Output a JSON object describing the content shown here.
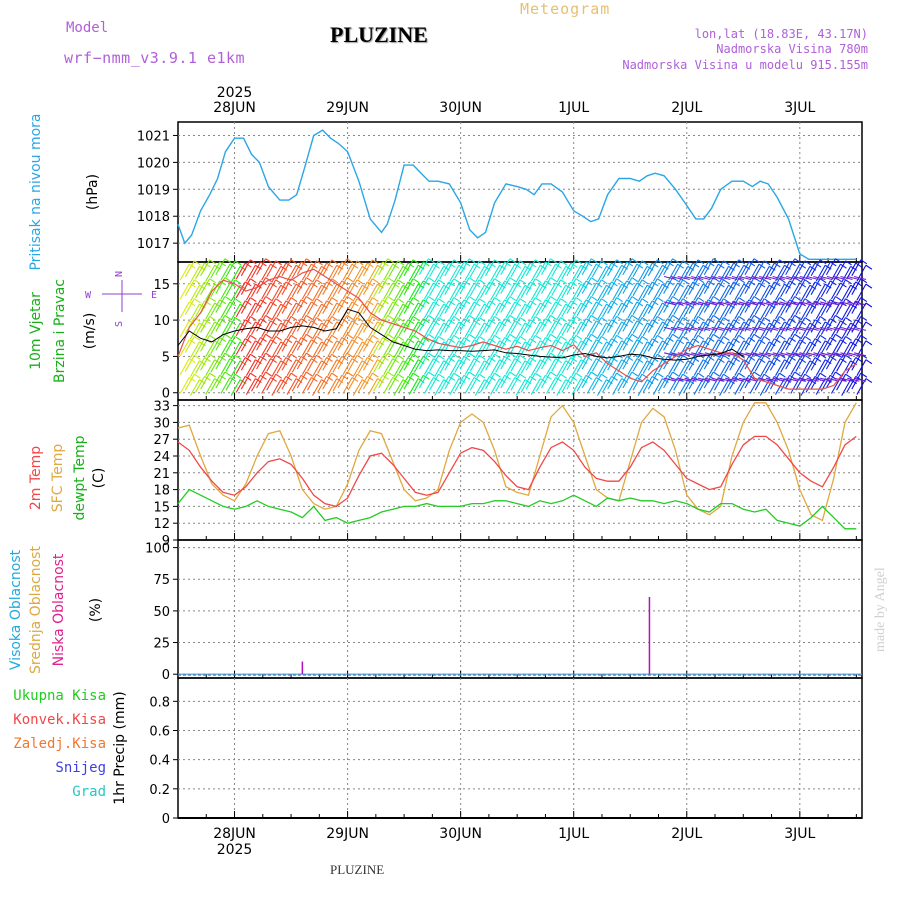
{
  "header": {
    "model_label": "Model",
    "model_name": "wrf−nmm_v3.9.1 e1km",
    "title": "PLUZINE",
    "meteogram_label": "Meteogram",
    "coords": "lon,lat (18.83E, 43.17N)",
    "elevation": "Nadmorska Visina 780m",
    "model_elevation": "Nadmorska Visina u modelu 915.155m"
  },
  "footer": {
    "station": "PLUZINE",
    "watermark": "made by Angel"
  },
  "colors": {
    "pressure": "#2aa6e6",
    "temp2m": "#f04848",
    "sfc": "#e0a840",
    "dewpt": "#22cc22",
    "high_cloud": "#22aadd",
    "mid_cloud": "#dca840",
    "low_cloud": "#e0208c",
    "total_rain": "#22cc22",
    "conv_rain": "#f04848",
    "frz_rain": "#f07830",
    "snow": "#4040e0",
    "hail": "#22c8c8",
    "grid": "#888888"
  },
  "chart_data": [
    {
      "type": "line",
      "panel": "pressure",
      "ylabel_lines": [
        "Pritisak na nivou mora",
        "(hPa)"
      ],
      "ylim": [
        1016.3,
        1021.5
      ],
      "yticks": [
        1017,
        1018,
        1019,
        1020,
        1021
      ],
      "x_date_labels": [
        "28JUN",
        "29JUN",
        "30JUN",
        "1JUL",
        "2JUL",
        "3JUL"
      ],
      "x_year": "2025",
      "x_day_offsets": [
        0.5,
        1.5,
        2.5,
        3.5,
        4.5,
        5.5,
        6.5
      ],
      "series": [
        {
          "name": "Pritisak na nivou mora",
          "x": [
            0.5,
            0.56,
            0.62,
            0.7,
            0.78,
            0.85,
            0.92,
            1.0,
            1.08,
            1.15,
            1.22,
            1.3,
            1.4,
            1.48,
            1.55,
            1.62,
            1.7,
            1.78,
            1.85,
            1.92,
            2.0,
            2.1,
            2.2,
            2.3,
            2.35,
            2.42,
            2.5,
            2.58,
            2.65,
            2.72,
            2.8,
            2.9,
            3.0,
            3.08,
            3.15,
            3.22,
            3.3,
            3.4,
            3.5,
            3.58,
            3.65,
            3.72,
            3.8,
            3.9,
            4.0,
            4.08,
            4.15,
            4.22,
            4.3,
            4.4,
            4.5,
            4.58,
            4.65,
            4.72,
            4.8,
            4.9,
            5.0,
            5.08,
            5.15,
            5.22,
            5.3,
            5.4,
            5.5,
            5.58,
            5.65,
            5.72,
            5.8,
            5.9,
            6.0,
            6.08,
            6.15,
            6.22,
            6.3,
            6.4,
            6.5
          ],
          "y": [
            1017.7,
            1017.0,
            1017.3,
            1018.2,
            1018.8,
            1019.4,
            1020.4,
            1020.9,
            1020.9,
            1020.3,
            1020.0,
            1019.1,
            1018.6,
            1018.6,
            1018.8,
            1019.8,
            1021.0,
            1021.2,
            1020.9,
            1020.7,
            1020.4,
            1019.3,
            1017.9,
            1017.4,
            1017.7,
            1018.6,
            1019.9,
            1019.9,
            1019.6,
            1019.3,
            1019.3,
            1019.2,
            1018.5,
            1017.5,
            1017.2,
            1017.4,
            1018.5,
            1019.2,
            1019.1,
            1019.0,
            1018.8,
            1019.2,
            1019.2,
            1018.9,
            1018.2,
            1018.0,
            1017.8,
            1017.9,
            1018.8,
            1019.4,
            1019.4,
            1019.3,
            1019.5,
            1019.6,
            1019.5,
            1019.0,
            1018.4,
            1017.9,
            1017.9,
            1018.3,
            1019.0,
            1019.3,
            1019.3,
            1019.1,
            1019.3,
            1019.2,
            1018.7,
            1017.9,
            1016.6,
            1016.4,
            1016.4,
            1016.4,
            1016.4,
            1016.4,
            1016.4
          ]
        }
      ]
    },
    {
      "type": "line",
      "panel": "wind",
      "ylabel_lines": [
        "10m Vjetar",
        "Brzina i Pravac",
        "(m/s)"
      ],
      "direction_key": [
        "N",
        "W",
        "E",
        "S"
      ],
      "ylim": [
        -1,
        18
      ],
      "yticks": [
        0,
        5,
        10,
        15
      ],
      "series": [
        {
          "name": "Brzina",
          "x": [
            0.5,
            0.6,
            0.7,
            0.8,
            0.9,
            1.0,
            1.1,
            1.2,
            1.3,
            1.4,
            1.5,
            1.6,
            1.7,
            1.8,
            1.9,
            2.0,
            2.1,
            2.2,
            2.3,
            2.4,
            2.5,
            2.6,
            2.7,
            2.8,
            2.9,
            3.0,
            3.1,
            3.2,
            3.3,
            3.4,
            3.5,
            3.6,
            3.7,
            3.8,
            3.9,
            4.0,
            4.1,
            4.2,
            4.3,
            4.4,
            4.5,
            4.6,
            4.7,
            4.8,
            4.9,
            5.0,
            5.1,
            5.2,
            5.3,
            5.4,
            5.5
          ],
          "y": [
            6.5,
            8.5,
            7.5,
            7.0,
            8.0,
            8.5,
            8.8,
            9.0,
            8.5,
            8.5,
            9.0,
            9.2,
            9.0,
            8.5,
            8.8,
            11.5,
            11.0,
            9.0,
            8.0,
            7.0,
            6.5,
            6.0,
            5.8,
            5.9,
            5.8,
            5.8,
            5.7,
            5.8,
            5.9,
            5.5,
            5.4,
            5.2,
            5.0,
            4.9,
            4.8,
            5.2,
            5.4,
            5.0,
            4.8,
            5.0,
            5.3,
            5.2,
            4.8,
            4.6,
            4.5,
            4.6,
            5.0,
            5.2,
            5.4,
            6.0,
            5.0
          ]
        },
        {
          "name": "Udari",
          "x": [
            0.5,
            0.6,
            0.7,
            0.8,
            0.9,
            1.0,
            1.1,
            1.2,
            1.3,
            1.4,
            1.5,
            1.6,
            1.7,
            1.8,
            1.9,
            2.0,
            2.1,
            2.2,
            2.3,
            2.4,
            2.5,
            2.6,
            2.7,
            2.8,
            2.9,
            3.0,
            3.1,
            3.2,
            3.3,
            3.4,
            3.5,
            3.6,
            3.7,
            3.8,
            3.9,
            4.0,
            4.1,
            4.2,
            4.3,
            4.4,
            4.5,
            4.6,
            4.7,
            4.8,
            4.9,
            5.0,
            5.1,
            5.2,
            5.3,
            5.4,
            5.5,
            5.6,
            5.7,
            5.8,
            5.9,
            6.0,
            6.1,
            6.2,
            6.3,
            6.4,
            6.5
          ],
          "y": [
            5,
            9,
            11,
            14,
            15.5,
            15,
            14,
            14.5,
            15.5,
            16,
            15.5,
            16.5,
            17,
            16,
            15,
            14,
            13,
            11,
            10,
            9.5,
            9,
            8.5,
            7.5,
            6.8,
            6.5,
            6.2,
            6.5,
            7,
            6.5,
            6.0,
            6.4,
            5.8,
            6.2,
            6.5,
            5.8,
            6.6,
            5.0,
            5.5,
            4.0,
            3.0,
            2.0,
            1.5,
            3.0,
            4.0,
            5.0,
            6.0,
            6.5,
            6.0,
            5.5,
            5.5,
            4.5,
            2.0,
            1.5,
            1.0,
            0.5,
            0.5,
            0.5,
            0.5,
            1.0,
            3.0,
            4.0
          ]
        }
      ]
    },
    {
      "type": "line",
      "panel": "temperature",
      "ylabel_lines": [
        "2m Temp",
        "SFC Temp",
        "dewpt Temp",
        "(C)"
      ],
      "ylim": [
        9,
        34
      ],
      "yticks": [
        9,
        12,
        15,
        18,
        21,
        24,
        27,
        30,
        33
      ],
      "series": [
        {
          "name": "2m Temp",
          "x": [
            0.5,
            0.6,
            0.7,
            0.8,
            0.9,
            1.0,
            1.1,
            1.2,
            1.3,
            1.4,
            1.5,
            1.6,
            1.7,
            1.8,
            1.9,
            2.0,
            2.1,
            2.2,
            2.3,
            2.4,
            2.5,
            2.6,
            2.7,
            2.8,
            2.9,
            3.0,
            3.1,
            3.2,
            3.3,
            3.4,
            3.5,
            3.6,
            3.7,
            3.8,
            3.9,
            4.0,
            4.1,
            4.2,
            4.3,
            4.4,
            4.5,
            4.6,
            4.7,
            4.8,
            4.9,
            5.0,
            5.1,
            5.2,
            5.3,
            5.4,
            5.5,
            5.6,
            5.7,
            5.8,
            5.9,
            6.0,
            6.1,
            6.2,
            6.3,
            6.4,
            6.5
          ],
          "y": [
            26.5,
            25,
            22,
            19.5,
            17.5,
            17,
            18.5,
            21,
            23,
            23.5,
            22.5,
            20,
            17,
            15.5,
            15,
            16.5,
            20.5,
            24,
            24.5,
            22.5,
            20,
            17.5,
            17,
            17.5,
            21,
            24.5,
            25.5,
            25,
            23,
            20.5,
            18.5,
            18,
            22,
            25.5,
            26.5,
            25,
            22,
            20,
            19.5,
            19.5,
            22,
            25.5,
            26.5,
            25,
            22.5,
            20,
            19,
            18,
            18.5,
            22.5,
            26,
            27.5,
            27.5,
            26,
            23.5,
            21,
            19.5,
            18.5,
            22,
            26,
            27.5
          ]
        },
        {
          "name": "SFC Temp",
          "x": [
            0.5,
            0.6,
            0.7,
            0.8,
            0.9,
            1.0,
            1.1,
            1.2,
            1.3,
            1.4,
            1.5,
            1.6,
            1.7,
            1.8,
            1.9,
            2.0,
            2.1,
            2.2,
            2.3,
            2.4,
            2.5,
            2.6,
            2.7,
            2.8,
            2.9,
            3.0,
            3.1,
            3.2,
            3.3,
            3.4,
            3.5,
            3.6,
            3.7,
            3.8,
            3.9,
            4.0,
            4.1,
            4.2,
            4.3,
            4.4,
            4.5,
            4.6,
            4.7,
            4.8,
            4.9,
            5.0,
            5.1,
            5.2,
            5.3,
            5.4,
            5.5,
            5.6,
            5.7,
            5.8,
            5.9,
            6.0,
            6.1,
            6.2,
            6.3,
            6.4,
            6.5
          ],
          "y": [
            29,
            29.5,
            24,
            19,
            17,
            16,
            19,
            24,
            28,
            28.5,
            24,
            18,
            15.5,
            14.5,
            15,
            19,
            25,
            28.5,
            28,
            23,
            18,
            16,
            16.5,
            18,
            25,
            30,
            31.5,
            30,
            25,
            18.5,
            17.5,
            17,
            24,
            31,
            33,
            30,
            24,
            18,
            16.5,
            16,
            23,
            30,
            32.5,
            31,
            25,
            17,
            14.5,
            13.5,
            15,
            24,
            30,
            33.5,
            33.5,
            30,
            25,
            18,
            13.5,
            12.5,
            20,
            30,
            33.5
          ]
        },
        {
          "name": "dewpt Temp",
          "x": [
            0.5,
            0.6,
            0.7,
            0.8,
            0.9,
            1.0,
            1.1,
            1.2,
            1.3,
            1.4,
            1.5,
            1.6,
            1.7,
            1.8,
            1.9,
            2.0,
            2.1,
            2.2,
            2.3,
            2.4,
            2.5,
            2.6,
            2.7,
            2.8,
            2.9,
            3.0,
            3.1,
            3.2,
            3.3,
            3.4,
            3.5,
            3.6,
            3.7,
            3.8,
            3.9,
            4.0,
            4.1,
            4.2,
            4.3,
            4.4,
            4.5,
            4.6,
            4.7,
            4.8,
            4.9,
            5.0,
            5.1,
            5.2,
            5.3,
            5.4,
            5.5,
            5.6,
            5.7,
            5.8,
            5.9,
            6.0,
            6.1,
            6.2,
            6.3,
            6.4,
            6.5
          ],
          "y": [
            15.5,
            18,
            17,
            16,
            15,
            14.5,
            15,
            16,
            15,
            14.5,
            14,
            13,
            15,
            12.5,
            13,
            12,
            12.5,
            13,
            14,
            14.5,
            15,
            15,
            15.5,
            15,
            15,
            15,
            15.5,
            15.5,
            16,
            16,
            15.5,
            15,
            16,
            15.5,
            16,
            17,
            16,
            15,
            16.5,
            16,
            16.5,
            16,
            16,
            15.5,
            16,
            15.5,
            14.5,
            14,
            15.5,
            15.5,
            14.5,
            14,
            14.5,
            12.5,
            12,
            11.5,
            13,
            15,
            13,
            11,
            11
          ]
        }
      ]
    },
    {
      "type": "bar",
      "panel": "clouds",
      "ylabel_lines": [
        "Visoka Oblacnost",
        "Srednja Oblacnost",
        "Niska Oblacnost",
        "(%)"
      ],
      "ylim": [
        -3,
        106
      ],
      "yticks": [
        0,
        25,
        50,
        75,
        100
      ],
      "series": [
        {
          "name": "Visoka Oblacnost",
          "x": [],
          "values": []
        },
        {
          "name": "Srednja Oblacnost",
          "x": [],
          "values": []
        },
        {
          "name": "Niska Oblacnost",
          "x": [
            1.6,
            4.67
          ],
          "values": [
            10,
            61
          ]
        }
      ]
    },
    {
      "type": "bar",
      "panel": "precip",
      "ylabel_lines": [
        "1hr Precip (mm)"
      ],
      "legend_labels": [
        "Ukupna Kisa",
        "Konvek.Kisa",
        "Zaledj.Kisa",
        "Snijeg",
        "Grad"
      ],
      "ylim": [
        0,
        0.96
      ],
      "yticks": [
        "0",
        "0.2",
        "0.4",
        "0.6",
        "0.8"
      ],
      "series": []
    }
  ]
}
